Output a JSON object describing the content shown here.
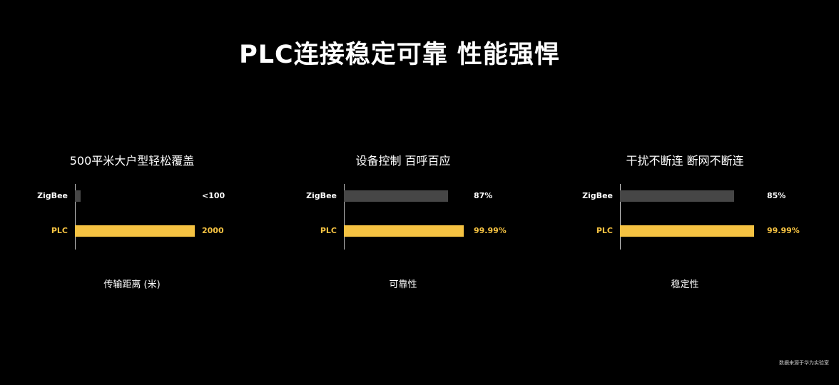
{
  "title": "PLC连接稳定可靠 性能强悍",
  "colors": {
    "zigbee": "#464646",
    "plc": "#f5c242",
    "zigbee_text": "#ffffff",
    "plc_text": "#f5c242"
  },
  "chart_data": [
    {
      "type": "bar",
      "orientation": "horizontal",
      "title": "500平米大户型轻松覆盖",
      "xlabel": "传输距离 (米)",
      "categories": [
        "ZigBee",
        "PLC"
      ],
      "values": [
        100,
        2000
      ],
      "value_labels": [
        "<100",
        "2000"
      ]
    },
    {
      "type": "bar",
      "orientation": "horizontal",
      "title": "设备控制 百呼百应",
      "xlabel": "可靠性",
      "categories": [
        "ZigBee",
        "PLC"
      ],
      "values": [
        87,
        99.99
      ],
      "value_labels": [
        "87%",
        "99.99%"
      ]
    },
    {
      "type": "bar",
      "orientation": "horizontal",
      "title": "干扰不断连 断网不断连",
      "xlabel": "稳定性",
      "categories": [
        "ZigBee",
        "PLC"
      ],
      "values": [
        85,
        99.99
      ],
      "value_labels": [
        "85%",
        "99.99%"
      ]
    }
  ],
  "footnote": "数据来源于华为实验室"
}
